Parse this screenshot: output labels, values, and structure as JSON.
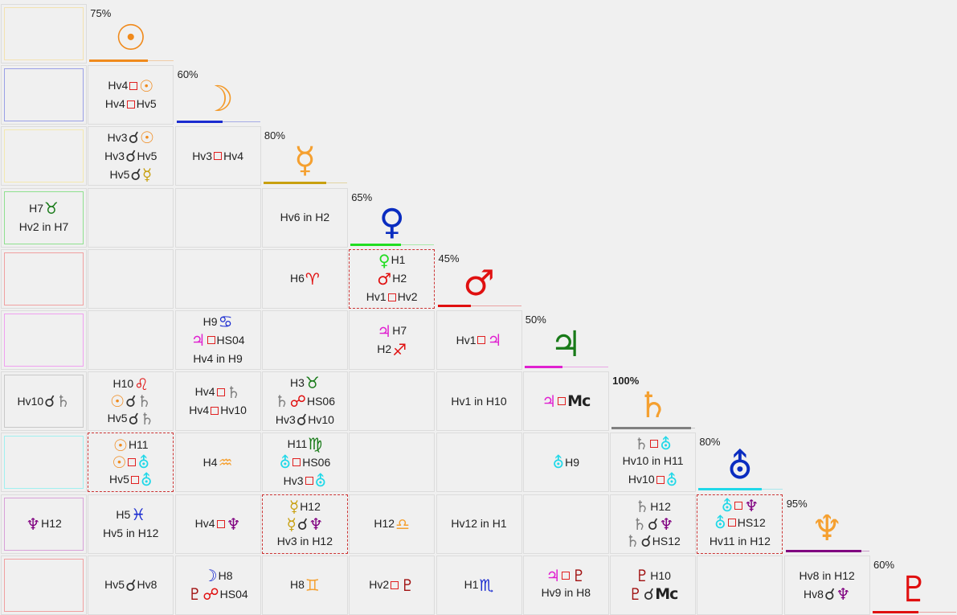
{
  "planets": [
    {
      "pct": "75%",
      "glyph": "☉",
      "color": "#f08a1c",
      "bar": "#f08a1c",
      "barw": 0.7
    },
    {
      "pct": "60%",
      "glyph": "☽",
      "color": "#f39a2a",
      "bar": "#1a2bd0",
      "barw": 0.55
    },
    {
      "pct": "80%",
      "glyph": "☿",
      "color": "#f5a030",
      "bar": "#c8a010",
      "barw": 0.75
    },
    {
      "pct": "65%",
      "glyph": "♀",
      "color": "#0a2cc0",
      "bar": "#22dd22",
      "barw": 0.6
    },
    {
      "pct": "45%",
      "glyph": "♂",
      "color": "#e01010",
      "bar": "#e01010",
      "barw": 0.4
    },
    {
      "pct": "50%",
      "glyph": "♃",
      "color": "#187a18",
      "bar": "#e020d0",
      "barw": 0.45
    },
    {
      "pct": "100%",
      "glyph": "♄",
      "color": "#f5a030",
      "bar": "#808080",
      "barw": 0.95
    },
    {
      "pct": "80%",
      "glyph": "⛢",
      "color": "#0a2cc0",
      "bar": "#20d8e8",
      "barw": 0.75
    },
    {
      "pct": "95%",
      "glyph": "♆",
      "color": "#f5a030",
      "bar": "#800080",
      "barw": 0.9
    },
    {
      "pct": "60%",
      "glyph": "♇",
      "color": "#e01010",
      "bar": "#e01010",
      "barw": 0.55
    }
  ],
  "side": [
    {
      "border": "#f3e2b0",
      "lines": []
    },
    {
      "border": "#9aa0e6",
      "lines": []
    },
    {
      "border": "#f3e8b0",
      "lines": []
    },
    {
      "border": "#8fe08f",
      "lines": [
        [
          {
            "t": "H7"
          },
          {
            "g": "♉",
            "c": "#187a18"
          }
        ],
        [
          {
            "t": "Hv2 in H7"
          }
        ]
      ]
    },
    {
      "border": "#f0a0a0",
      "lines": []
    },
    {
      "border": "#f0a0f0",
      "lines": []
    },
    {
      "border": "#c8c8c8",
      "lines": [
        [
          {
            "t": "Hv10"
          },
          {
            "g": "☌",
            "c": "#333"
          },
          {
            "g": "♄",
            "c": "#808080"
          }
        ]
      ]
    },
    {
      "border": "#a0f0f0",
      "lines": []
    },
    {
      "border": "#d8a0d8",
      "lines": [
        [
          {
            "g": "♆",
            "c": "#800080"
          },
          {
            "t": "H12"
          }
        ]
      ]
    },
    {
      "border": "#f0a0a0",
      "lines": []
    }
  ],
  "cells": [
    {
      "r": 1,
      "c": 1,
      "lines": [
        [
          {
            "t": "Hv4"
          },
          {
            "sq": 1
          },
          {
            "g": "☉",
            "c": "#f08a1c"
          }
        ],
        [
          {
            "t": "Hv4"
          },
          {
            "sq": 1
          },
          {
            "t": "Hv5"
          }
        ]
      ]
    },
    {
      "r": 2,
      "c": 1,
      "lines": [
        [
          {
            "t": "Hv3"
          },
          {
            "g": "☌",
            "c": "#333"
          },
          {
            "g": "☉",
            "c": "#f08a1c"
          }
        ],
        [
          {
            "t": "Hv3"
          },
          {
            "g": "☌",
            "c": "#333"
          },
          {
            "t": "Hv5"
          }
        ],
        [
          {
            "t": "Hv5"
          },
          {
            "g": "☌",
            "c": "#333"
          },
          {
            "g": "☿",
            "c": "#c8a010"
          }
        ]
      ]
    },
    {
      "r": 2,
      "c": 2,
      "lines": [
        [
          {
            "t": "Hv3"
          },
          {
            "sq": 1
          },
          {
            "t": "Hv4"
          }
        ]
      ]
    },
    {
      "r": 3,
      "c": 3,
      "lines": [
        [
          {
            "t": "Hv6 in H2"
          }
        ]
      ]
    },
    {
      "r": 4,
      "c": 3,
      "lines": [
        [
          {
            "t": "H6"
          },
          {
            "g": "♈",
            "c": "#e01010"
          }
        ]
      ]
    },
    {
      "r": 4,
      "c": 4,
      "dashed": 1,
      "lines": [
        [
          {
            "g": "♀",
            "c": "#22dd22"
          },
          {
            "t": "H1"
          }
        ],
        [
          {
            "g": "♂",
            "c": "#e01010"
          },
          {
            "t": "H2"
          }
        ],
        [
          {
            "t": "Hv1"
          },
          {
            "sq": 1
          },
          {
            "t": "Hv2"
          }
        ]
      ]
    },
    {
      "r": 5,
      "c": 2,
      "lines": [
        [
          {
            "t": "H9"
          },
          {
            "g": "♋",
            "c": "#1a2bd0"
          }
        ],
        [
          {
            "g": "♃",
            "c": "#e020d0"
          },
          {
            "sq": 1
          },
          {
            "t": "HS04"
          }
        ],
        [
          {
            "t": "Hv4 in H9"
          }
        ]
      ]
    },
    {
      "r": 5,
      "c": 4,
      "lines": [
        [
          {
            "g": "♃",
            "c": "#e020d0"
          },
          {
            "t": "H7"
          }
        ],
        [
          {
            "t": "H2"
          },
          {
            "g": "♐",
            "c": "#e01010"
          }
        ]
      ]
    },
    {
      "r": 5,
      "c": 5,
      "lines": [
        [
          {
            "t": "Hv1"
          },
          {
            "sq": 1
          },
          {
            "g": "♃",
            "c": "#e020d0"
          }
        ]
      ]
    },
    {
      "r": 6,
      "c": 1,
      "lines": [
        [
          {
            "t": "H10"
          },
          {
            "g": "♌",
            "c": "#e01010"
          }
        ],
        [
          {
            "g": "☉",
            "c": "#f08a1c"
          },
          {
            "g": "☌",
            "c": "#333"
          },
          {
            "g": "♄",
            "c": "#808080"
          }
        ],
        [
          {
            "t": "Hv5"
          },
          {
            "g": "☌",
            "c": "#333"
          },
          {
            "g": "♄",
            "c": "#808080"
          }
        ]
      ]
    },
    {
      "r": 6,
      "c": 2,
      "lines": [
        [
          {
            "t": "Hv4"
          },
          {
            "sq": 1
          },
          {
            "g": "♄",
            "c": "#808080"
          }
        ],
        [
          {
            "t": "Hv4"
          },
          {
            "sq": 1
          },
          {
            "t": "Hv10"
          }
        ]
      ]
    },
    {
      "r": 6,
      "c": 3,
      "lines": [
        [
          {
            "t": "H3"
          },
          {
            "g": "♉",
            "c": "#187a18"
          }
        ],
        [
          {
            "g": "♄",
            "c": "#808080"
          },
          {
            "g": "☍",
            "c": "#e01010"
          },
          {
            "t": "HS06"
          }
        ],
        [
          {
            "t": "Hv3"
          },
          {
            "g": "☌",
            "c": "#333"
          },
          {
            "t": "Hv10"
          }
        ]
      ]
    },
    {
      "r": 6,
      "c": 5,
      "lines": [
        [
          {
            "t": "Hv1 in H10"
          }
        ]
      ]
    },
    {
      "r": 6,
      "c": 6,
      "lines": [
        [
          {
            "g": "♃",
            "c": "#e020d0"
          },
          {
            "sq": 1
          },
          {
            "mc": "Mc"
          }
        ]
      ]
    },
    {
      "r": 7,
      "c": 1,
      "dashed": 1,
      "lines": [
        [
          {
            "g": "☉",
            "c": "#f08a1c"
          },
          {
            "t": "H11"
          }
        ],
        [
          {
            "g": "☉",
            "c": "#f08a1c"
          },
          {
            "sq": 1
          },
          {
            "g": "⛢",
            "c": "#20d8e8"
          }
        ],
        [
          {
            "t": "Hv5"
          },
          {
            "sq": 1
          },
          {
            "g": "⛢",
            "c": "#20d8e8"
          }
        ]
      ]
    },
    {
      "r": 7,
      "c": 2,
      "lines": [
        [
          {
            "t": "H4"
          },
          {
            "g": "♒",
            "c": "#f5a030"
          }
        ]
      ]
    },
    {
      "r": 7,
      "c": 3,
      "lines": [
        [
          {
            "t": "H11"
          },
          {
            "g": "♍",
            "c": "#187a18"
          }
        ],
        [
          {
            "g": "⛢",
            "c": "#20d8e8"
          },
          {
            "sq": 1
          },
          {
            "t": "HS06"
          }
        ],
        [
          {
            "t": "Hv3"
          },
          {
            "sq": 1
          },
          {
            "g": "⛢",
            "c": "#20d8e8"
          }
        ]
      ]
    },
    {
      "r": 7,
      "c": 6,
      "lines": [
        [
          {
            "g": "⛢",
            "c": "#20d8e8"
          },
          {
            "t": "H9"
          }
        ]
      ]
    },
    {
      "r": 7,
      "c": 7,
      "lines": [
        [
          {
            "g": "♄",
            "c": "#808080"
          },
          {
            "sq": 1
          },
          {
            "g": "⛢",
            "c": "#20d8e8"
          }
        ],
        [
          {
            "t": "Hv10 in H11"
          }
        ],
        [
          {
            "t": "Hv10"
          },
          {
            "sq": 1
          },
          {
            "g": "⛢",
            "c": "#20d8e8"
          }
        ]
      ]
    },
    {
      "r": 8,
      "c": 1,
      "lines": [
        [
          {
            "t": "H5"
          },
          {
            "g": "♓",
            "c": "#1a2bd0"
          }
        ],
        [
          {
            "t": "Hv5 in H12"
          }
        ]
      ]
    },
    {
      "r": 8,
      "c": 2,
      "lines": [
        [
          {
            "t": "Hv4"
          },
          {
            "sq": 1
          },
          {
            "g": "♆",
            "c": "#800080"
          }
        ]
      ]
    },
    {
      "r": 8,
      "c": 3,
      "dashed": 1,
      "lines": [
        [
          {
            "g": "☿",
            "c": "#c8a010"
          },
          {
            "t": "H12"
          }
        ],
        [
          {
            "g": "☿",
            "c": "#c8a010"
          },
          {
            "g": "☌",
            "c": "#333"
          },
          {
            "g": "♆",
            "c": "#800080"
          }
        ],
        [
          {
            "t": "Hv3 in H12"
          }
        ]
      ]
    },
    {
      "r": 8,
      "c": 4,
      "lines": [
        [
          {
            "t": "H12"
          },
          {
            "g": "♎",
            "c": "#f5a030"
          }
        ]
      ]
    },
    {
      "r": 8,
      "c": 5,
      "lines": [
        [
          {
            "t": "Hv12 in H1"
          }
        ]
      ]
    },
    {
      "r": 8,
      "c": 7,
      "lines": [
        [
          {
            "g": "♄",
            "c": "#808080"
          },
          {
            "t": "H12"
          }
        ],
        [
          {
            "g": "♄",
            "c": "#808080"
          },
          {
            "g": "☌",
            "c": "#333"
          },
          {
            "g": "♆",
            "c": "#800080"
          }
        ],
        [
          {
            "g": "♄",
            "c": "#808080"
          },
          {
            "g": "☌",
            "c": "#333"
          },
          {
            "t": "HS12"
          }
        ]
      ]
    },
    {
      "r": 8,
      "c": 8,
      "dashed": 1,
      "lines": [
        [
          {
            "g": "⛢",
            "c": "#20d8e8"
          },
          {
            "sq": 1
          },
          {
            "g": "♆",
            "c": "#800080"
          }
        ],
        [
          {
            "g": "⛢",
            "c": "#20d8e8"
          },
          {
            "sq": 1
          },
          {
            "t": "HS12"
          }
        ],
        [
          {
            "t": "Hv11 in H12"
          }
        ]
      ]
    },
    {
      "r": 9,
      "c": 1,
      "lines": [
        [
          {
            "t": "Hv5"
          },
          {
            "g": "☌",
            "c": "#333"
          },
          {
            "t": "Hv8"
          }
        ]
      ]
    },
    {
      "r": 9,
      "c": 2,
      "lines": [
        [
          {
            "g": "☽",
            "c": "#1a2bd0"
          },
          {
            "t": "H8"
          }
        ],
        [
          {
            "g": "♇",
            "c": "#a01010"
          },
          {
            "g": "☍",
            "c": "#e01010"
          },
          {
            "t": "HS04"
          }
        ]
      ]
    },
    {
      "r": 9,
      "c": 3,
      "lines": [
        [
          {
            "t": "H8"
          },
          {
            "g": "♊",
            "c": "#f5a030"
          }
        ]
      ]
    },
    {
      "r": 9,
      "c": 4,
      "lines": [
        [
          {
            "t": "Hv2"
          },
          {
            "sq": 1
          },
          {
            "g": "♇",
            "c": "#a01010"
          }
        ]
      ]
    },
    {
      "r": 9,
      "c": 5,
      "lines": [
        [
          {
            "t": "H1"
          },
          {
            "g": "♏",
            "c": "#1a2bd0"
          }
        ]
      ]
    },
    {
      "r": 9,
      "c": 6,
      "lines": [
        [
          {
            "g": "♃",
            "c": "#e020d0"
          },
          {
            "sq": 1
          },
          {
            "g": "♇",
            "c": "#a01010"
          }
        ],
        [
          {
            "t": "Hv9 in H8"
          }
        ]
      ]
    },
    {
      "r": 9,
      "c": 7,
      "lines": [
        [
          {
            "g": "♇",
            "c": "#a01010"
          },
          {
            "t": "H10"
          }
        ],
        [
          {
            "g": "♇",
            "c": "#a01010"
          },
          {
            "g": "☌",
            "c": "#333"
          },
          {
            "mc": "Mc"
          }
        ]
      ]
    },
    {
      "r": 9,
      "c": 9,
      "lines": [
        [
          {
            "t": "Hv8 in H12"
          }
        ],
        [
          {
            "t": "Hv8"
          },
          {
            "g": "☌",
            "c": "#333"
          },
          {
            "g": "♆",
            "c": "#800080"
          }
        ]
      ]
    }
  ]
}
